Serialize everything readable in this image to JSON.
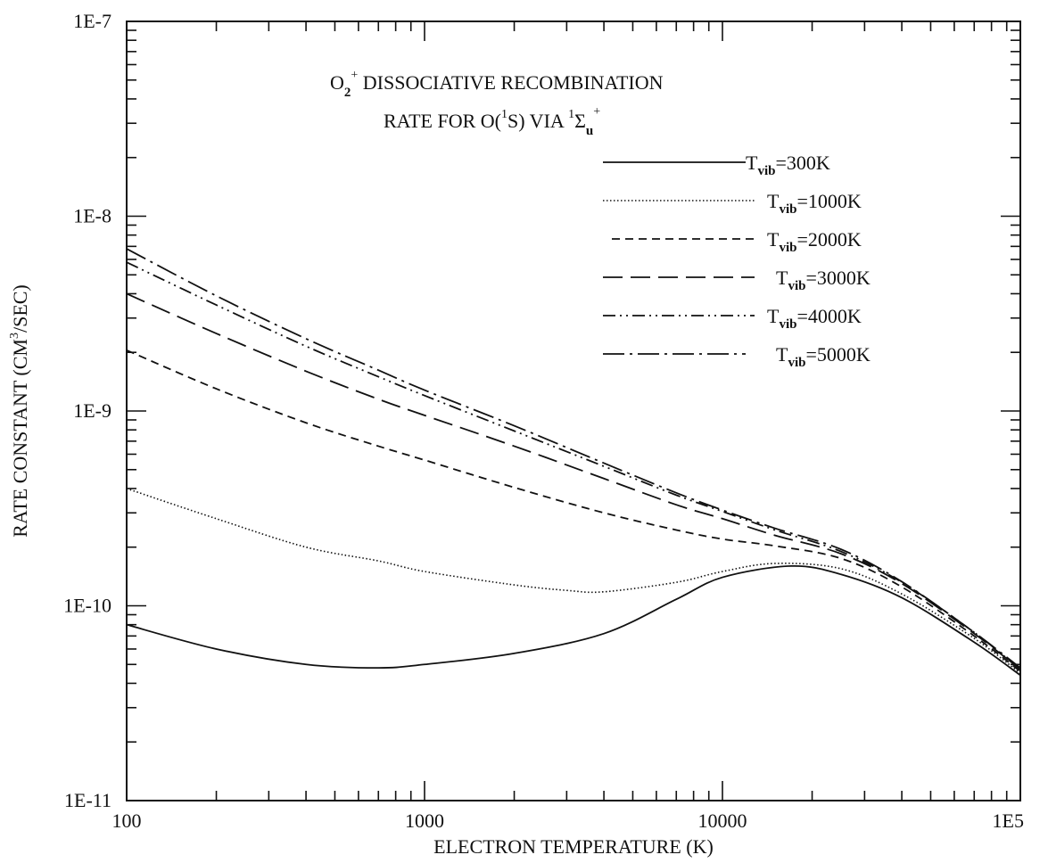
{
  "chart_data": {
    "type": "line",
    "title_line1": {
      "main": "O",
      "sub": "2",
      "sup": "+",
      "rest": " DISSOCIATIVE RECOMBINATION"
    },
    "title_line2": {
      "prefix": "RATE FOR O(",
      "sup1": "1",
      "mid": "S) VIA ",
      "sup2": "1",
      "sigma": "Σ",
      "sub": "u",
      "sup3": "+"
    },
    "xlabel": "ELECTRON TEMPERATURE (K)",
    "ylabel": {
      "prefix": "RATE CONSTANT (CM",
      "sup": "3",
      "suffix": "/SEC)"
    },
    "x_scale": "log",
    "y_scale": "log",
    "xlim": [
      100,
      100000
    ],
    "ylim": [
      1e-11,
      1e-07
    ],
    "x_tick_labels": [
      "100",
      "1000",
      "10000",
      "1E5"
    ],
    "y_tick_labels": [
      "1E-11",
      "1E-10",
      "1E-9",
      "1E-8",
      "1E-7"
    ],
    "grid": false,
    "legend_position": "upper-right",
    "series": [
      {
        "name": "300K",
        "legend_prefix": "T",
        "legend_sub": "vib",
        "dash": "solid",
        "x": [
          100,
          200,
          400,
          700,
          1000,
          2000,
          4000,
          7000,
          10000,
          17000,
          25000,
          40000,
          70000,
          100000
        ],
        "y": [
          8e-11,
          6e-11,
          5e-11,
          4.8e-11,
          5e-11,
          5.7e-11,
          7.2e-11,
          1.08e-10,
          1.4e-10,
          1.6e-10,
          1.45e-10,
          1.1e-10,
          6.5e-11,
          4.4e-11
        ]
      },
      {
        "name": "1000K",
        "legend_prefix": "T",
        "legend_sub": "vib",
        "dash": "dotted",
        "x": [
          100,
          200,
          400,
          700,
          1000,
          2000,
          3000,
          4000,
          7000,
          10000,
          15000,
          25000,
          40000,
          70000,
          100000
        ],
        "y": [
          4e-10,
          2.8e-10,
          2e-10,
          1.7e-10,
          1.5e-10,
          1.28e-10,
          1.2e-10,
          1.18e-10,
          1.32e-10,
          1.5e-10,
          1.65e-10,
          1.55e-10,
          1.15e-10,
          6.8e-11,
          4.5e-11
        ]
      },
      {
        "name": "2000K",
        "legend_prefix": "T",
        "legend_sub": "vib",
        "dash": "short-dash",
        "x": [
          100,
          200,
          400,
          700,
          1000,
          2000,
          4000,
          7000,
          10000,
          15000,
          25000,
          40000,
          70000,
          100000
        ],
        "y": [
          2.05e-09,
          1.3e-09,
          8.7e-10,
          6.6e-10,
          5.6e-10,
          4.05e-10,
          3e-10,
          2.45e-10,
          2.2e-10,
          2.03e-10,
          1.75e-10,
          1.25e-10,
          7e-11,
          4.6e-11
        ]
      },
      {
        "name": "3000K",
        "legend_prefix": "T",
        "legend_sub": "vib",
        "dash": "long-dash",
        "x": [
          100,
          200,
          400,
          700,
          1000,
          2000,
          4000,
          7000,
          10000,
          15000,
          25000,
          40000,
          70000,
          100000
        ],
        "y": [
          4e-09,
          2.5e-09,
          1.6e-09,
          1.15e-09,
          9.5e-10,
          6.6e-10,
          4.5e-10,
          3.3e-10,
          2.8e-10,
          2.3e-10,
          1.85e-10,
          1.3e-10,
          7.2e-11,
          4.7e-11
        ]
      },
      {
        "name": "4000K",
        "legend_prefix": "T",
        "legend_sub": "vib",
        "dash": "dash-dot-dot",
        "x": [
          100,
          200,
          400,
          700,
          1000,
          2000,
          4000,
          7000,
          10000,
          15000,
          25000,
          40000,
          70000,
          100000
        ],
        "y": [
          5.8e-09,
          3.5e-09,
          2.15e-09,
          1.5e-09,
          1.2e-09,
          7.9e-10,
          5.2e-10,
          3.7e-10,
          3.05e-10,
          2.45e-10,
          1.9e-10,
          1.32e-10,
          7.3e-11,
          4.7e-11
        ]
      },
      {
        "name": "5000K",
        "legend_prefix": "T",
        "legend_sub": "vib",
        "dash": "dash-dot",
        "x": [
          100,
          200,
          400,
          700,
          1000,
          2000,
          4000,
          7000,
          10000,
          15000,
          25000,
          40000,
          70000,
          100000
        ],
        "y": [
          6.8e-09,
          3.9e-09,
          2.35e-09,
          1.62e-09,
          1.28e-09,
          8.4e-10,
          5.4e-10,
          3.8e-10,
          3.1e-10,
          2.5e-10,
          1.95e-10,
          1.33e-10,
          7.3e-11,
          4.8e-11
        ]
      }
    ]
  }
}
